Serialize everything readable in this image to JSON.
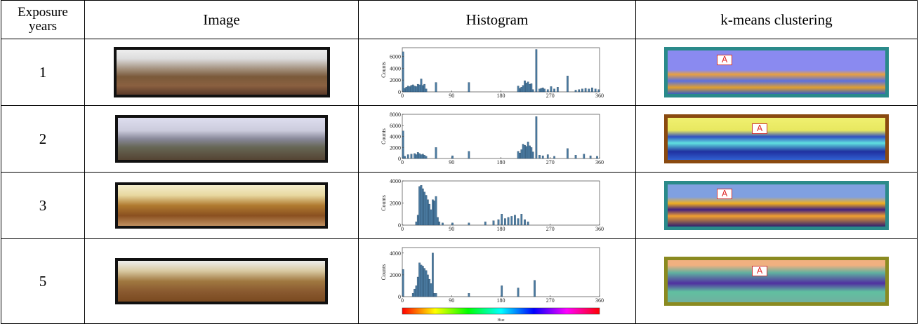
{
  "table": {
    "header": [
      "Exposure years",
      "Image",
      "Histogram",
      "k-means clustering"
    ],
    "rows": [
      {
        "years": "1",
        "cluster_label": "A",
        "histogram": {
          "type": "bar",
          "ylabel": "Counts",
          "color": "#4a7aa0",
          "x": [
            0,
            3,
            6,
            9,
            12,
            15,
            18,
            21,
            24,
            27,
            30,
            33,
            36,
            39,
            42,
            60,
            120,
            210,
            213,
            216,
            219,
            222,
            225,
            228,
            231,
            234,
            237,
            243,
            249,
            252,
            255,
            258,
            264,
            270,
            276,
            282,
            300,
            315,
            321,
            327,
            333,
            339,
            345,
            351,
            357
          ],
          "values": [
            6800,
            600,
            800,
            1000,
            900,
            1100,
            1200,
            1000,
            900,
            1300,
            1200,
            2200,
            1100,
            1300,
            500,
            1600,
            1600,
            1000,
            600,
            800,
            1100,
            1900,
            1500,
            1700,
            1300,
            1400,
            400,
            7200,
            500,
            600,
            700,
            500,
            400,
            900,
            500,
            800,
            2700,
            300,
            400,
            500,
            600,
            500,
            700,
            500,
            400
          ],
          "xlim": [
            0,
            360
          ],
          "xticks": [
            0,
            90,
            180,
            270,
            360
          ],
          "ylim": [
            0,
            7500
          ],
          "yticks": [
            0,
            2000,
            4000,
            6000
          ]
        }
      },
      {
        "years": "2",
        "cluster_label": "A",
        "histogram": {
          "type": "bar",
          "ylabel": "Counts",
          "color": "#4a7aa0",
          "x": [
            0,
            3,
            9,
            15,
            21,
            24,
            27,
            30,
            33,
            36,
            39,
            42,
            60,
            90,
            120,
            210,
            213,
            216,
            219,
            222,
            225,
            228,
            231,
            234,
            237,
            243,
            249,
            255,
            264,
            276,
            300,
            315,
            330,
            342,
            354
          ],
          "values": [
            5000,
            400,
            700,
            800,
            900,
            700,
            1100,
            900,
            700,
            800,
            600,
            400,
            2000,
            500,
            1300,
            1300,
            1000,
            1600,
            2600,
            2400,
            2200,
            3000,
            2300,
            2000,
            1200,
            7600,
            600,
            500,
            700,
            400,
            1800,
            600,
            800,
            500,
            400
          ],
          "xlim": [
            0,
            360
          ],
          "xticks": [
            0,
            90,
            180,
            270,
            360
          ],
          "ylim": [
            0,
            8000
          ],
          "yticks": [
            0,
            2000,
            4000,
            6000,
            8000
          ]
        }
      },
      {
        "years": "3",
        "cluster_label": "A",
        "histogram": {
          "type": "bar",
          "ylabel": "Counts",
          "color": "#4a7aa0",
          "x": [
            24,
            27,
            30,
            33,
            36,
            39,
            42,
            45,
            48,
            51,
            54,
            57,
            60,
            63,
            66,
            72,
            90,
            120,
            150,
            165,
            174,
            180,
            186,
            192,
            198,
            204,
            210,
            216,
            222,
            228
          ],
          "values": [
            300,
            900,
            3500,
            3600,
            3300,
            3000,
            2700,
            2300,
            1900,
            1400,
            2300,
            2200,
            2600,
            700,
            300,
            200,
            200,
            200,
            300,
            400,
            500,
            1000,
            600,
            700,
            800,
            900,
            600,
            1000,
            500,
            300
          ],
          "xlim": [
            0,
            360
          ],
          "xticks": [
            0,
            90,
            180,
            270,
            360
          ],
          "ylim": [
            0,
            4000
          ],
          "yticks": [
            0,
            2000,
            4000
          ]
        }
      },
      {
        "years": "5",
        "cluster_label": "A",
        "histogram": {
          "type": "bar",
          "ylabel": "Counts",
          "color": "#4a7aa0",
          "x": [
            0,
            18,
            21,
            24,
            27,
            30,
            33,
            36,
            39,
            42,
            45,
            48,
            51,
            54,
            57,
            60,
            120,
            180,
            210,
            240
          ],
          "values": [
            2500,
            300,
            700,
            1000,
            1800,
            3100,
            2900,
            2800,
            2600,
            2400,
            2000,
            1600,
            1200,
            4000,
            300,
            300,
            300,
            1000,
            800,
            1500
          ],
          "xlim": [
            0,
            360
          ],
          "xticks": [
            0,
            90,
            180,
            270,
            360
          ],
          "ylim": [
            0,
            4500
          ],
          "yticks": [
            0,
            2000,
            4000
          ]
        }
      }
    ]
  },
  "hue_label": "Hue"
}
